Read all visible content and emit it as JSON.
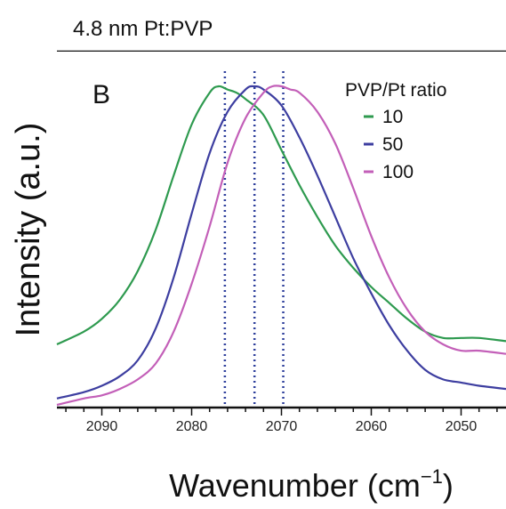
{
  "chart_data": {
    "type": "line",
    "title": "4.8 nm Pt:PVP",
    "panel_label": "B",
    "xlabel": "Wavenumber (cm",
    "xlabel_sup": "−1",
    "xlabel_close": ")",
    "ylabel": "Intensity (a.u.)",
    "xlim": [
      2095,
      2045
    ],
    "ylim": [
      0,
      1.0
    ],
    "x_ticks": [
      2090,
      2080,
      2070,
      2060,
      2050
    ],
    "x_minor_step": 2,
    "y_ticks_shown": false,
    "legend": {
      "title": "PVP/Pt ratio",
      "placement": "top-right"
    },
    "vlines": [
      {
        "x": 2076.3,
        "color": "#2e3f9c"
      },
      {
        "x": 2073.0,
        "color": "#2e3f9c"
      },
      {
        "x": 2069.8,
        "color": "#2e3f9c"
      }
    ],
    "series": [
      {
        "name": "10",
        "color": "#2e9a4f",
        "x": [
          2095,
          2092,
          2090,
          2088,
          2086,
          2084,
          2082,
          2080,
          2078,
          2077,
          2076,
          2075,
          2074,
          2072,
          2070,
          2068,
          2066,
          2064,
          2062,
          2060,
          2058,
          2056,
          2054,
          2052,
          2050,
          2048,
          2045
        ],
        "y": [
          0.19,
          0.23,
          0.27,
          0.33,
          0.42,
          0.55,
          0.72,
          0.88,
          0.98,
          1.0,
          0.99,
          0.98,
          0.96,
          0.91,
          0.8,
          0.69,
          0.59,
          0.5,
          0.43,
          0.37,
          0.32,
          0.27,
          0.23,
          0.21,
          0.21,
          0.21,
          0.2
        ]
      },
      {
        "name": "50",
        "color": "#3d3ea0",
        "x": [
          2095,
          2092,
          2090,
          2088,
          2086,
          2084,
          2082,
          2080,
          2078,
          2076,
          2074,
          2073,
          2072,
          2070,
          2068,
          2066,
          2064,
          2062,
          2060,
          2058,
          2056,
          2054,
          2052,
          2050,
          2048,
          2045
        ],
        "y": [
          0.02,
          0.04,
          0.06,
          0.09,
          0.14,
          0.24,
          0.4,
          0.6,
          0.79,
          0.92,
          0.99,
          1.0,
          0.99,
          0.94,
          0.84,
          0.72,
          0.59,
          0.46,
          0.35,
          0.25,
          0.17,
          0.11,
          0.08,
          0.07,
          0.06,
          0.05
        ]
      },
      {
        "name": "100",
        "color": "#c35fb8",
        "x": [
          2095,
          2092,
          2090,
          2088,
          2086,
          2084,
          2082,
          2080,
          2078,
          2076,
          2074,
          2072,
          2071,
          2070,
          2069,
          2068,
          2066,
          2064,
          2062,
          2060,
          2058,
          2056,
          2054,
          2052,
          2050,
          2048,
          2045
        ],
        "y": [
          0.0,
          0.02,
          0.03,
          0.05,
          0.08,
          0.13,
          0.23,
          0.38,
          0.56,
          0.76,
          0.9,
          0.98,
          1.0,
          1.0,
          0.99,
          0.98,
          0.92,
          0.82,
          0.68,
          0.53,
          0.4,
          0.3,
          0.23,
          0.19,
          0.17,
          0.17,
          0.16
        ]
      }
    ]
  }
}
